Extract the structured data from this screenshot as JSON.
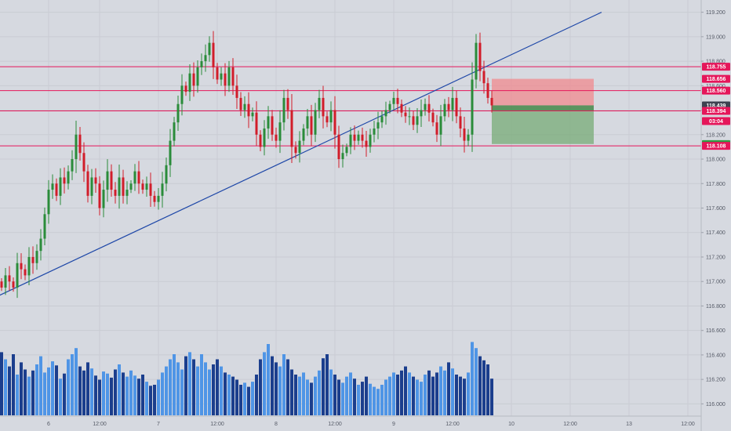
{
  "chart_data": {
    "type": "candlestick",
    "y_axis": {
      "ylim": [
        115.9,
        119.3
      ],
      "ticks": [
        116.0,
        116.2,
        116.4,
        116.6,
        116.8,
        117.0,
        117.2,
        117.4,
        117.6,
        117.8,
        118.0,
        118.2,
        118.4,
        118.6,
        118.8,
        119.0,
        119.2
      ],
      "tick_labels": [
        "116.000",
        "116.200",
        "116.400",
        "116.600",
        "116.800",
        "117.000",
        "117.200",
        "117.400",
        "117.600",
        "117.800",
        "118.000",
        "118.200",
        "118.400",
        "118.600",
        "118.800",
        "119.000",
        "119.200"
      ],
      "gridlines": true
    },
    "x_axis": {
      "tick_labels": [
        "6",
        "12:00",
        "7",
        "12:00",
        "8",
        "12:00",
        "9",
        "12:00",
        "10",
        "12:00",
        "13",
        "12:00"
      ],
      "tick_bar_index": [
        12,
        25,
        40,
        55,
        70,
        85,
        100,
        115,
        130,
        145,
        160,
        175
      ]
    },
    "bar_count": 126,
    "closes": [
      116.95,
      117.05,
      117.0,
      116.95,
      117.15,
      117.1,
      117.05,
      117.2,
      117.15,
      117.25,
      117.35,
      117.55,
      117.75,
      117.8,
      117.7,
      117.85,
      117.8,
      117.9,
      118.0,
      118.2,
      118.05,
      117.9,
      117.7,
      117.85,
      117.8,
      117.6,
      117.75,
      117.9,
      117.75,
      117.7,
      117.85,
      117.7,
      117.75,
      117.8,
      117.9,
      117.8,
      117.75,
      117.8,
      117.7,
      117.65,
      117.7,
      117.8,
      117.95,
      118.15,
      118.3,
      118.45,
      118.6,
      118.55,
      118.7,
      118.6,
      118.75,
      118.8,
      118.85,
      118.95,
      118.75,
      118.65,
      118.7,
      118.6,
      118.75,
      118.6,
      118.5,
      118.4,
      118.45,
      118.35,
      118.38,
      118.2,
      118.1,
      118.25,
      118.35,
      118.2,
      118.15,
      118.3,
      118.5,
      118.4,
      118.1,
      118.05,
      118.15,
      118.25,
      118.35,
      118.2,
      118.4,
      118.5,
      118.35,
      118.3,
      118.4,
      118.2,
      118.0,
      118.05,
      118.1,
      118.2,
      118.15,
      118.2,
      118.15,
      118.1,
      118.2,
      118.25,
      118.3,
      118.35,
      118.4,
      118.45,
      118.5,
      118.45,
      118.38,
      118.35,
      118.35,
      118.28,
      118.35,
      118.4,
      118.45,
      118.38,
      118.3,
      118.2,
      118.35,
      118.45,
      118.4,
      118.5,
      118.35,
      118.25,
      118.15,
      118.2,
      118.65,
      118.95,
      118.72,
      118.62,
      118.5,
      118.439
    ],
    "volume_scale_max": 100,
    "volumes": [
      62,
      55,
      48,
      60,
      40,
      52,
      45,
      38,
      44,
      50,
      58,
      42,
      47,
      53,
      49,
      36,
      41,
      55,
      60,
      66,
      48,
      44,
      52,
      46,
      39,
      35,
      43,
      41,
      37,
      45,
      50,
      42,
      38,
      44,
      39,
      36,
      40,
      33,
      29,
      30,
      35,
      42,
      48,
      55,
      60,
      52,
      45,
      58,
      62,
      55,
      48,
      60,
      52,
      45,
      50,
      55,
      48,
      42,
      40,
      38,
      35,
      30,
      32,
      28,
      33,
      40,
      55,
      62,
      70,
      58,
      52,
      48,
      60,
      55,
      45,
      40,
      38,
      42,
      35,
      32,
      38,
      44,
      56,
      60,
      45,
      40,
      35,
      32,
      38,
      42,
      36,
      30,
      33,
      38,
      31,
      28,
      26,
      30,
      35,
      38,
      42,
      40,
      44,
      48,
      42,
      38,
      35,
      33,
      40,
      44,
      38,
      42,
      48,
      44,
      52,
      46,
      40,
      38,
      36,
      42,
      72,
      66,
      58,
      54,
      50,
      36
    ],
    "trendline": {
      "from": {
        "bar": -1,
        "price": 116.88
      },
      "to": {
        "bar": 153,
        "price": 119.2
      }
    },
    "horizontal_lines": [
      118.755,
      118.56,
      118.394,
      118.108
    ],
    "position_box": {
      "start_bar": 125,
      "end_bar": 151,
      "entry": 118.439,
      "stop": 118.656,
      "target": 118.123
    },
    "price_tags": [
      {
        "label": "118.755",
        "value": 118.755,
        "color": "#e5165a"
      },
      {
        "label": "118.656",
        "value": 118.656,
        "color": "#e5165a"
      },
      {
        "label": "118.560",
        "value": 118.56,
        "color": "#e5165a"
      },
      {
        "label": "118.439",
        "value": 118.439,
        "color": "#3d4250"
      },
      {
        "label": "118.394",
        "value": 118.394,
        "color": "#e5165a"
      },
      {
        "label": "03:04",
        "value": 118.3,
        "color": "#e5165a"
      },
      {
        "label": "118.123",
        "value": 118.123,
        "color": "#2e9d42"
      },
      {
        "label": "118.108",
        "value": 118.108,
        "color": "#e5165a"
      }
    ],
    "colors": {
      "up": "#2a8c3a",
      "down": "#d11d2a",
      "level_line": "#e5165a",
      "trendline": "#1f48a8",
      "volume_light": "#4f95e6",
      "volume_dark": "#1b3e8d",
      "stop_zone": "#f08a8f",
      "target_zone": "#7dae7d"
    }
  }
}
